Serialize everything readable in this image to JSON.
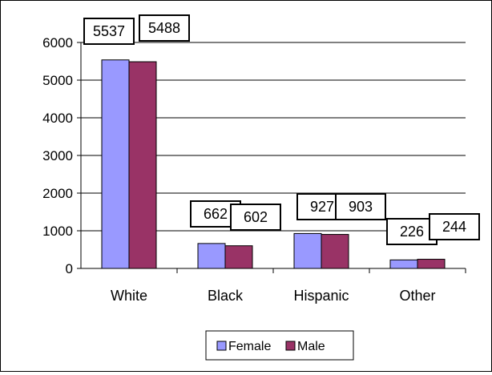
{
  "chart_data": {
    "type": "bar",
    "categories": [
      "White",
      "Black",
      "Hispanic",
      "Other"
    ],
    "series": [
      {
        "name": "Female",
        "values": [
          5537,
          662,
          927,
          226
        ],
        "color": "#9999FF"
      },
      {
        "name": "Male",
        "values": [
          5488,
          602,
          903,
          244
        ],
        "color": "#993366"
      }
    ],
    "title": "",
    "xlabel": "",
    "ylabel": "",
    "ylim": [
      0,
      6000
    ],
    "yticks": [
      0,
      1000,
      2000,
      3000,
      4000,
      5000,
      6000
    ],
    "grid": true,
    "legend_position": "bottom",
    "data_labels": true
  }
}
